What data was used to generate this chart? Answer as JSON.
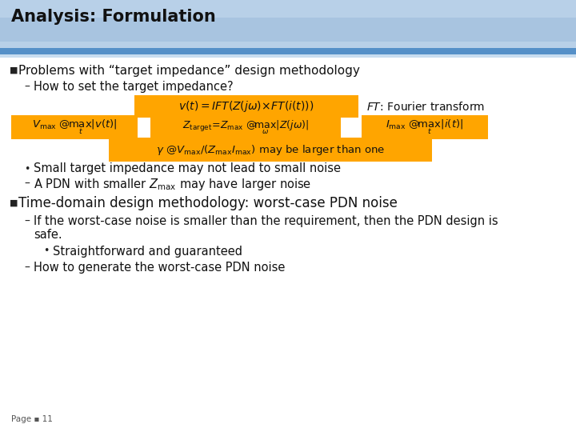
{
  "title": "Analysis: Formulation",
  "header_color": "#b8d0e8",
  "header_stripe_color": "#4a90c4",
  "slide_bg_color": "#ffffff",
  "orange_color": "#FFA500",
  "bullet1": "Problems with “target impedance” design methodology",
  "sub1": "How to set the target impedance?",
  "ft_label": "FT: Fourier transform",
  "bullet_sub1a": "Small target impedance may not lead to small noise",
  "sub2_text": "A PDN with smaller ",
  "sub2_sub": "max",
  "sub2_end": " may have larger noise",
  "bullet2": "Time-domain design methodology: worst-case PDN noise",
  "sub3_line1": "If the worst-case noise is smaller than the requirement, then the PDN design is",
  "sub3_line2": "safe.",
  "bullet_sub3a": "Straightforward and guaranteed",
  "sub4": "How to generate the worst-case PDN noise",
  "page_label": "Page ▪ 11"
}
